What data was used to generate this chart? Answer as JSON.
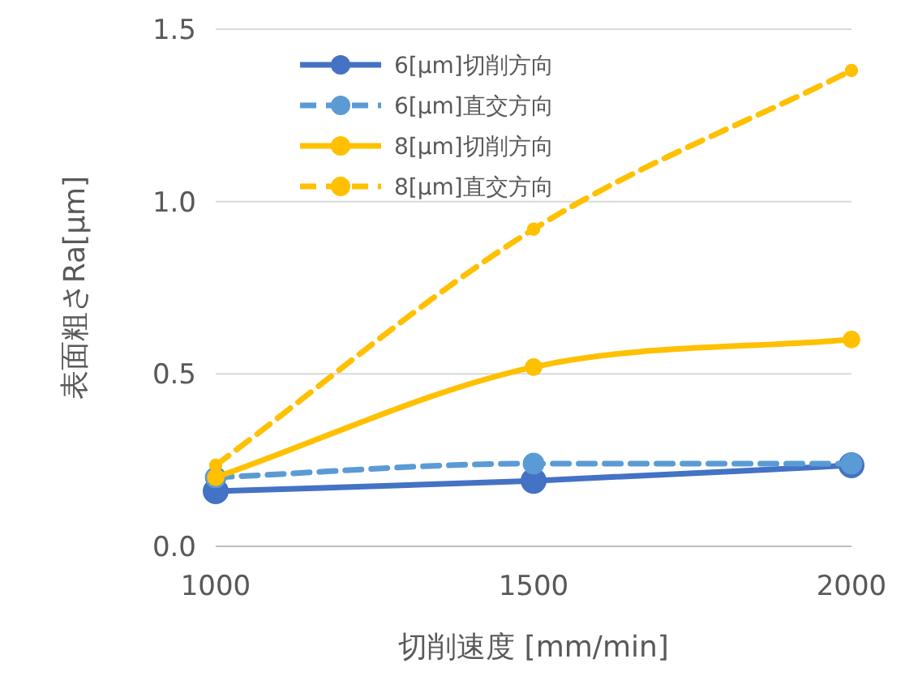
{
  "chart_data": {
    "type": "line",
    "xlabel": "切削速度 [mm/min]",
    "ylabel": "表面粗さRa[μm]",
    "x": [
      1000,
      1500,
      2000
    ],
    "xlim": [
      1000,
      2000
    ],
    "xticks": [
      1000,
      1500,
      2000
    ],
    "ylim": [
      0,
      1.5
    ],
    "yticks": [
      {
        "value": 0,
        "label": "0.0"
      },
      {
        "value": 0.5,
        "label": "0.5"
      },
      {
        "value": 1.0,
        "label": "1.0"
      },
      {
        "value": 1.5,
        "label": "1.5"
      }
    ],
    "grid": "y",
    "legend": "top",
    "marker": "circle",
    "series": [
      {
        "name": "6[μm]切削方向",
        "color": "#4472c4",
        "line_style": "solid",
        "values": [
          0.16,
          0.19,
          0.235
        ]
      },
      {
        "name": "6[μm]直交方向",
        "color": "#5b9bd5",
        "line_style": "dashed",
        "values": [
          0.2,
          0.24,
          0.24
        ]
      },
      {
        "name": "8[μm]切削方向",
        "color": "#ffc000",
        "line_style": "solid",
        "values": [
          0.2,
          0.52,
          0.6
        ]
      },
      {
        "name": "8[μm]直交方向",
        "color": "#ffc000",
        "line_style": "dashed",
        "values": [
          0.235,
          0.92,
          1.38
        ]
      }
    ]
  }
}
